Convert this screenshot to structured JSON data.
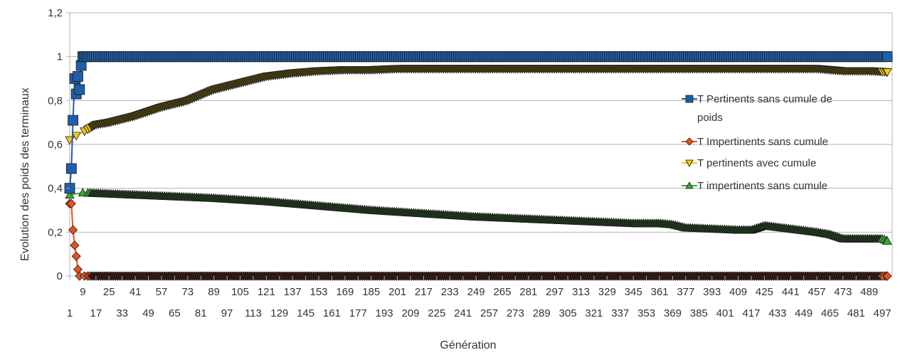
{
  "chart_data": {
    "type": "line",
    "title": "",
    "xlabel": "Génération",
    "ylabel": "Evolution des poids des terminaux",
    "ylim": [
      0,
      1.2
    ],
    "xlim": [
      1,
      503
    ],
    "y_ticks": [
      "0",
      "0,2",
      "0,4",
      "0,6",
      "0,8",
      "1",
      "1,2"
    ],
    "x_ticks_top": [
      "9",
      "25",
      "41",
      "57",
      "73",
      "89",
      "105",
      "121",
      "137",
      "153",
      "169",
      "185",
      "201",
      "217",
      "233",
      "249",
      "265",
      "281",
      "297",
      "313",
      "329",
      "345",
      "361",
      "377",
      "393",
      "409",
      "425",
      "441",
      "457",
      "473",
      "489"
    ],
    "x_ticks_bottom": [
      "1",
      "17",
      "33",
      "49",
      "65",
      "81",
      "97",
      "113",
      "129",
      "145",
      "161",
      "177",
      "193",
      "209",
      "225",
      "241",
      "257",
      "273",
      "289",
      "305",
      "321",
      "337",
      "353",
      "369",
      "385",
      "401",
      "417",
      "433",
      "449",
      "465",
      "481",
      "497"
    ],
    "grid": true,
    "legend_position": "right",
    "series": [
      {
        "name": "T Pertinents sans cumule de poids",
        "color": "#1f5fa8",
        "marker": "square",
        "x": [
          1,
          2,
          3,
          4,
          5,
          6,
          7,
          8,
          9,
          10,
          11,
          12,
          20,
          40,
          60,
          80,
          100,
          150,
          200,
          250,
          300,
          350,
          400,
          450,
          500
        ],
        "y": [
          0.4,
          0.49,
          0.71,
          0.9,
          0.83,
          0.91,
          0.85,
          0.96,
          1.0,
          1.0,
          1.0,
          1.0,
          1.0,
          1.0,
          1.0,
          1.0,
          1.0,
          1.0,
          1.0,
          1.0,
          1.0,
          1.0,
          1.0,
          1.0,
          1.0
        ]
      },
      {
        "name": "T Impertinents sans cumule",
        "color": "#e8501e",
        "marker": "diamond",
        "x": [
          1,
          2,
          3,
          4,
          5,
          6,
          7,
          10,
          20,
          50,
          100,
          150,
          200,
          250,
          300,
          350,
          400,
          450,
          500
        ],
        "y": [
          0.33,
          0.33,
          0.21,
          0.14,
          0.09,
          0.03,
          0.0,
          0.0,
          0.0,
          0.0,
          0.0,
          0.0,
          0.0,
          0.0,
          0.0,
          0.0,
          0.0,
          0.0,
          0.0
        ]
      },
      {
        "name": "T pertinents avec cumule",
        "color": "#f5c518",
        "marker": "triangle-down",
        "x": [
          1,
          5,
          10,
          17,
          25,
          41,
          57,
          73,
          89,
          105,
          121,
          137,
          153,
          169,
          185,
          201,
          233,
          265,
          297,
          329,
          361,
          393,
          425,
          457,
          473,
          489,
          500
        ],
        "y": [
          0.62,
          0.64,
          0.66,
          0.69,
          0.7,
          0.73,
          0.77,
          0.8,
          0.85,
          0.88,
          0.91,
          0.925,
          0.935,
          0.94,
          0.94,
          0.945,
          0.945,
          0.945,
          0.945,
          0.945,
          0.945,
          0.945,
          0.945,
          0.945,
          0.935,
          0.935,
          0.93
        ]
      },
      {
        "name": "T impertinents sans cumule",
        "color": "#3aa832",
        "marker": "triangle-up",
        "x": [
          1,
          9,
          25,
          57,
          89,
          121,
          153,
          185,
          217,
          249,
          281,
          313,
          345,
          361,
          369,
          377,
          409,
          417,
          425,
          441,
          457,
          465,
          473,
          481,
          497,
          500
        ],
        "y": [
          0.37,
          0.38,
          0.375,
          0.365,
          0.355,
          0.34,
          0.32,
          0.3,
          0.285,
          0.27,
          0.26,
          0.25,
          0.24,
          0.24,
          0.235,
          0.22,
          0.21,
          0.21,
          0.23,
          0.215,
          0.2,
          0.19,
          0.17,
          0.17,
          0.17,
          0.16
        ]
      }
    ]
  }
}
